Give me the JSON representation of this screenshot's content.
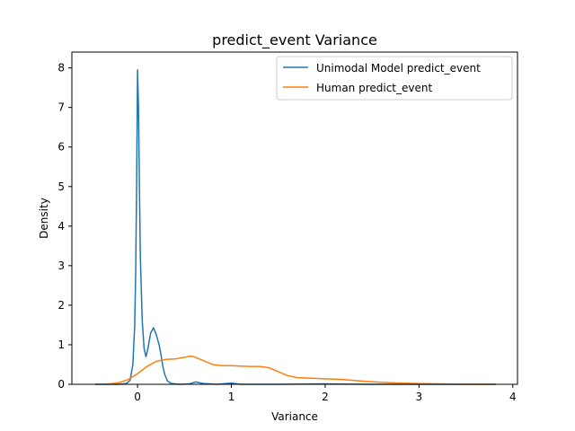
{
  "chart_data": {
    "type": "line",
    "title": "predict_event Variance",
    "xlabel": "Variance",
    "ylabel": "Density",
    "xlim": [
      -0.7,
      4.05
    ],
    "ylim": [
      0,
      8.4
    ],
    "xticks": [
      0,
      1,
      2,
      3,
      4
    ],
    "yticks": [
      0,
      1,
      2,
      3,
      4,
      5,
      6,
      7,
      8
    ],
    "grid": false,
    "legend_position": "upper right",
    "series": [
      {
        "name": "Unimodal Model predict_event",
        "color": "#1f77b4",
        "points": [
          [
            -0.45,
            0.0
          ],
          [
            -0.2,
            0.0
          ],
          [
            -0.12,
            0.02
          ],
          [
            -0.08,
            0.1
          ],
          [
            -0.05,
            0.5
          ],
          [
            -0.03,
            1.5
          ],
          [
            -0.02,
            2.8
          ],
          [
            -0.01,
            5.0
          ],
          [
            0.0,
            7.95
          ],
          [
            0.01,
            7.0
          ],
          [
            0.02,
            5.0
          ],
          [
            0.03,
            3.2
          ],
          [
            0.05,
            1.6
          ],
          [
            0.07,
            0.9
          ],
          [
            0.09,
            0.7
          ],
          [
            0.11,
            0.9
          ],
          [
            0.14,
            1.3
          ],
          [
            0.17,
            1.43
          ],
          [
            0.2,
            1.25
          ],
          [
            0.23,
            1.0
          ],
          [
            0.25,
            0.75
          ],
          [
            0.27,
            0.45
          ],
          [
            0.29,
            0.25
          ],
          [
            0.32,
            0.08
          ],
          [
            0.36,
            0.02
          ],
          [
            0.45,
            0.0
          ],
          [
            0.55,
            0.01
          ],
          [
            0.62,
            0.06
          ],
          [
            0.7,
            0.02
          ],
          [
            0.85,
            0.0
          ],
          [
            1.0,
            0.03
          ],
          [
            1.1,
            0.0
          ],
          [
            1.3,
            0.0
          ],
          [
            1.5,
            0.0
          ],
          [
            2.0,
            0.01
          ],
          [
            2.5,
            0.0
          ],
          [
            3.0,
            0.0
          ],
          [
            3.5,
            0.0
          ],
          [
            3.82,
            0.0
          ]
        ]
      },
      {
        "name": "Human predict_event",
        "color": "#ff7f0e",
        "points": [
          [
            -0.45,
            0.0
          ],
          [
            -0.3,
            0.01
          ],
          [
            -0.2,
            0.04
          ],
          [
            -0.1,
            0.12
          ],
          [
            0.0,
            0.27
          ],
          [
            0.1,
            0.45
          ],
          [
            0.2,
            0.58
          ],
          [
            0.3,
            0.63
          ],
          [
            0.4,
            0.64
          ],
          [
            0.5,
            0.68
          ],
          [
            0.55,
            0.71
          ],
          [
            0.6,
            0.7
          ],
          [
            0.7,
            0.6
          ],
          [
            0.8,
            0.5
          ],
          [
            0.9,
            0.47
          ],
          [
            1.0,
            0.47
          ],
          [
            1.1,
            0.46
          ],
          [
            1.2,
            0.45
          ],
          [
            1.3,
            0.45
          ],
          [
            1.4,
            0.42
          ],
          [
            1.5,
            0.32
          ],
          [
            1.6,
            0.22
          ],
          [
            1.7,
            0.17
          ],
          [
            1.8,
            0.16
          ],
          [
            2.0,
            0.14
          ],
          [
            2.2,
            0.12
          ],
          [
            2.4,
            0.08
          ],
          [
            2.6,
            0.05
          ],
          [
            2.8,
            0.03
          ],
          [
            3.0,
            0.02
          ],
          [
            3.2,
            0.01
          ],
          [
            3.5,
            0.0
          ],
          [
            3.82,
            0.0
          ]
        ]
      }
    ]
  }
}
